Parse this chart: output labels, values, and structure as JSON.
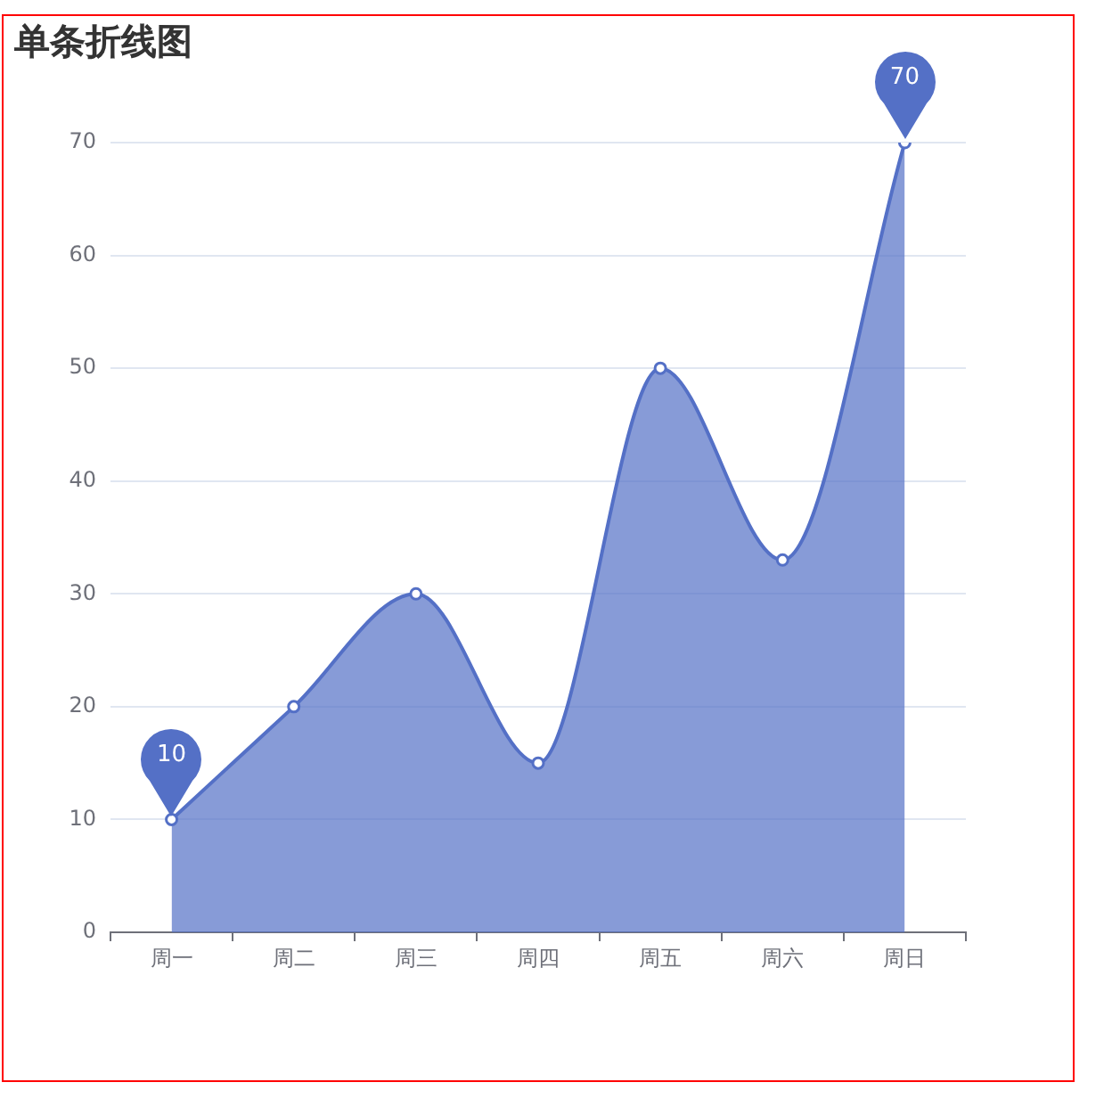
{
  "chart_data": {
    "type": "area",
    "title": "单条折线图",
    "categories": [
      "周一",
      "周二",
      "周三",
      "周四",
      "周五",
      "周六",
      "周日"
    ],
    "values": [
      10,
      20,
      30,
      15,
      50,
      33,
      70
    ],
    "value_labels": [
      "10",
      null,
      null,
      null,
      null,
      null,
      "70"
    ],
    "color": "#5470c6",
    "ylim": [
      0,
      70
    ],
    "yticks": [
      0,
      10,
      20,
      30,
      40,
      50,
      60,
      70
    ],
    "grid": "y",
    "legend": false,
    "marker": "circle"
  }
}
